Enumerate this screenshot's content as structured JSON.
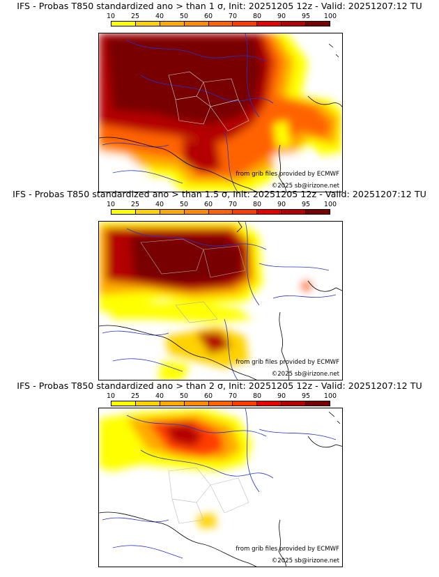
{
  "colorbar": {
    "ticks": [
      "10",
      "25",
      "40",
      "50",
      "60",
      "70",
      "80",
      "90",
      "95",
      "100"
    ],
    "colors": [
      "#ffff00",
      "#ffd200",
      "#ffaa00",
      "#ff8c00",
      "#ff6400",
      "#ff3c00",
      "#e60000",
      "#b40000",
      "#780000"
    ]
  },
  "credits": {
    "source": "from grib files provided by ECMWF",
    "copyright": "©2025 sb@irizone.net"
  },
  "panels": [
    {
      "title": "IFS - Probas T850  standardized ano > than 1 σ, Init: 20251205 12z - Valid: 20251207:12 TU"
    },
    {
      "title": "IFS - Probas T850  standardized ano > than 1.5 σ, Init: 20251205 12z - Valid: 20251207:12 TU"
    },
    {
      "title": "IFS - Probas T850  standardized ano > than 2 σ, Init: 20251205 12z - Valid: 20251207:12 TU"
    }
  ]
}
